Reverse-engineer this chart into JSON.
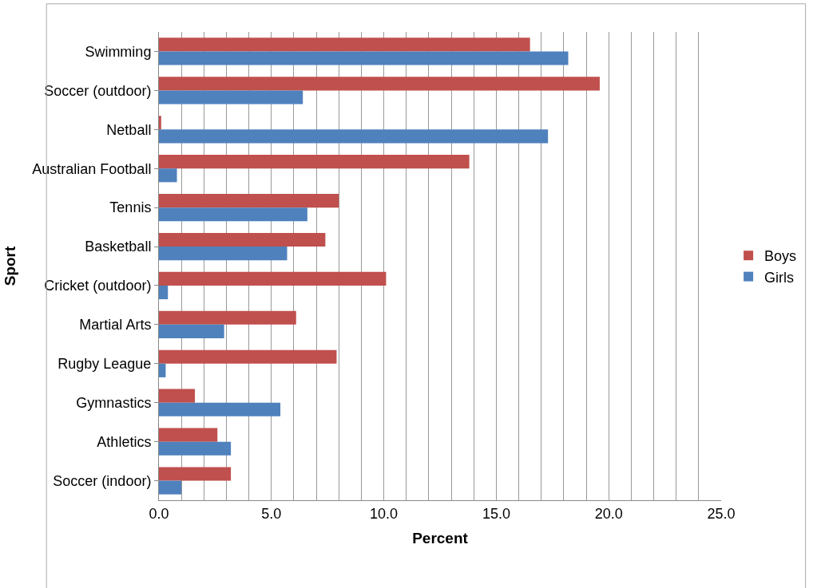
{
  "chart_data": {
    "type": "bar",
    "orientation": "horizontal",
    "xlabel": "Percent",
    "ylabel": "Sport",
    "categories": [
      "Swimming",
      "Soccer (outdoor)",
      "Netball",
      "Australian Football",
      "Tennis",
      "Basketball",
      "Cricket (outdoor)",
      "Martial Arts",
      "Rugby League",
      "Gymnastics",
      "Athletics",
      "Soccer (indoor)"
    ],
    "series": [
      {
        "name": "Boys",
        "color": "#c0504d",
        "values": [
          16.5,
          19.6,
          0.1,
          13.8,
          8.0,
          7.4,
          10.1,
          6.1,
          7.9,
          1.6,
          2.6,
          3.2
        ]
      },
      {
        "name": "Girls",
        "color": "#4f81bd",
        "values": [
          18.2,
          6.4,
          17.3,
          0.8,
          6.6,
          5.7,
          0.4,
          2.9,
          0.3,
          5.4,
          3.2,
          1.0
        ]
      }
    ],
    "xlim": [
      0,
      25
    ],
    "xticks": [
      {
        "value": 0,
        "label": "0.0"
      },
      {
        "value": 1,
        "label": null
      },
      {
        "value": 2,
        "label": null
      },
      {
        "value": 3,
        "label": null
      },
      {
        "value": 4,
        "label": null
      },
      {
        "value": 5,
        "label": "5.0"
      },
      {
        "value": 6,
        "label": null
      },
      {
        "value": 7,
        "label": null
      },
      {
        "value": 8,
        "label": null
      },
      {
        "value": 9,
        "label": null
      },
      {
        "value": 10,
        "label": "10.0"
      },
      {
        "value": 11,
        "label": null
      },
      {
        "value": 12,
        "label": null
      },
      {
        "value": 13,
        "label": null
      },
      {
        "value": 14,
        "label": null
      },
      {
        "value": 15,
        "label": "15.0"
      },
      {
        "value": 16,
        "label": null
      },
      {
        "value": 17,
        "label": null
      },
      {
        "value": 18,
        "label": null
      },
      {
        "value": 19,
        "label": null
      },
      {
        "value": 20,
        "label": "20.0"
      },
      {
        "value": 21,
        "label": null
      },
      {
        "value": 22,
        "label": null
      },
      {
        "value": 23,
        "label": null
      },
      {
        "value": 24,
        "label": null
      },
      {
        "value": 25,
        "label": "25.0"
      }
    ],
    "grid": "x",
    "legend": "right"
  }
}
